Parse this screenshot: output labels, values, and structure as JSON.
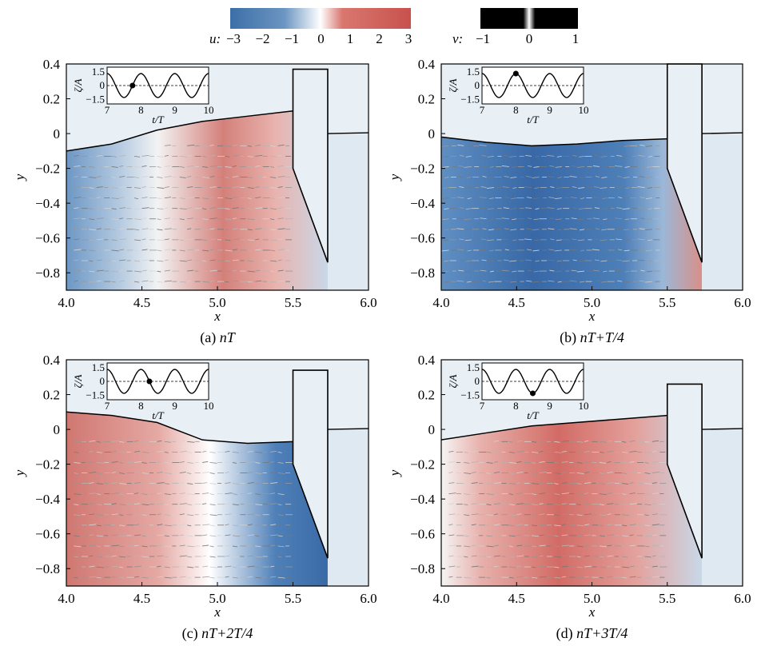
{
  "colorbars": {
    "u": {
      "label": "u:",
      "ticks": [
        "−3",
        "−2",
        "−1",
        "0",
        "1",
        "2",
        "3"
      ],
      "range": [
        -3,
        3
      ],
      "colors": [
        "#3c6fa8",
        "#ffffff",
        "#c8514d"
      ]
    },
    "v": {
      "label": "v:",
      "ticks": [
        "−1",
        "0",
        "1"
      ],
      "range": [
        -1,
        1
      ],
      "colors": [
        "#000000",
        "#ffffff",
        "#000000"
      ]
    }
  },
  "chart_data": [
    {
      "type": "heatmap",
      "panel": "a",
      "caption_prefix": "(a) ",
      "caption_math": "nT",
      "caption_suffix": "",
      "xlabel": "x",
      "ylabel": "y",
      "xlim": [
        4.0,
        6.0
      ],
      "ylim": [
        -0.9,
        0.4
      ],
      "x_ticks": [
        "4.0",
        "4.5",
        "5.0",
        "5.5",
        "6.0"
      ],
      "y_ticks": [
        "0.4",
        "0.2",
        "0",
        "−0.2",
        "−0.4",
        "−0.6",
        "−0.8"
      ],
      "dominant_u": "positive",
      "free_surface": {
        "x": [
          4.0,
          4.3,
          4.6,
          4.9,
          5.2,
          5.5
        ],
        "y": [
          -0.1,
          -0.06,
          0.02,
          0.07,
          0.1,
          0.13
        ]
      },
      "outside_surface_y": 0.0,
      "structure_top_y": 0.37,
      "inset": {
        "ylabel": "ζ/A",
        "xlabel": "t/T",
        "xticks": [
          "7",
          "8",
          "9",
          "10"
        ],
        "yticks": [
          "1.5",
          "0",
          "−1.5"
        ],
        "marker_t": 7.75
      }
    },
    {
      "type": "heatmap",
      "panel": "b",
      "caption_prefix": "(b) ",
      "caption_math": "nT",
      "caption_suffix": "+T/4",
      "xlabel": "x",
      "ylabel": "y",
      "xlim": [
        4.0,
        6.0
      ],
      "ylim": [
        -0.9,
        0.4
      ],
      "x_ticks": [
        "4.0",
        "4.5",
        "5.0",
        "5.5",
        "6.0"
      ],
      "y_ticks": [
        "0.4",
        "0.2",
        "0",
        "−0.2",
        "−0.4",
        "−0.6",
        "−0.8"
      ],
      "dominant_u": "negative",
      "free_surface": {
        "x": [
          4.0,
          4.3,
          4.6,
          4.9,
          5.2,
          5.5
        ],
        "y": [
          -0.02,
          -0.05,
          -0.07,
          -0.06,
          -0.04,
          -0.03
        ]
      },
      "outside_surface_y": 0.0,
      "structure_top_y": 0.4,
      "inset": {
        "ylabel": "ζ/A",
        "xlabel": "t/T",
        "xticks": [
          "7",
          "8",
          "9",
          "10"
        ],
        "yticks": [
          "1.5",
          "0",
          "−1.5"
        ],
        "marker_t": 8.0
      }
    },
    {
      "type": "heatmap",
      "panel": "c",
      "caption_prefix": "(c) ",
      "caption_math": "nT",
      "caption_suffix": "+2T/4",
      "xlabel": "x",
      "ylabel": "y",
      "xlim": [
        4.0,
        6.0
      ],
      "ylim": [
        -0.9,
        0.4
      ],
      "x_ticks": [
        "4.0",
        "4.5",
        "5.0",
        "5.5",
        "6.0"
      ],
      "y_ticks": [
        "0.4",
        "0.2",
        "0",
        "−0.2",
        "−0.4",
        "−0.6",
        "−0.8"
      ],
      "dominant_u": "positive_left",
      "free_surface": {
        "x": [
          4.0,
          4.3,
          4.6,
          4.9,
          5.2,
          5.5
        ],
        "y": [
          0.1,
          0.08,
          0.04,
          -0.06,
          -0.08,
          -0.07
        ]
      },
      "outside_surface_y": 0.0,
      "structure_top_y": 0.34,
      "inset": {
        "ylabel": "ζ/A",
        "xlabel": "t/T",
        "xticks": [
          "7",
          "8",
          "9",
          "10"
        ],
        "yticks": [
          "1.5",
          "0",
          "−1.5"
        ],
        "marker_t": 8.25
      }
    },
    {
      "type": "heatmap",
      "panel": "d",
      "caption_prefix": "(d) ",
      "caption_math": "nT",
      "caption_suffix": "+3T/4",
      "xlabel": "x",
      "ylabel": "y",
      "xlim": [
        4.0,
        6.0
      ],
      "ylim": [
        -0.9,
        0.4
      ],
      "x_ticks": [
        "4.0",
        "4.5",
        "5.0",
        "5.5",
        "6.0"
      ],
      "y_ticks": [
        "0.4",
        "0.2",
        "0",
        "−0.2",
        "−0.4",
        "−0.6",
        "−0.8"
      ],
      "dominant_u": "positive",
      "free_surface": {
        "x": [
          4.0,
          4.3,
          4.6,
          4.9,
          5.2,
          5.5
        ],
        "y": [
          -0.06,
          -0.02,
          0.02,
          0.04,
          0.06,
          0.08
        ]
      },
      "outside_surface_y": 0.0,
      "structure_top_y": 0.26,
      "inset": {
        "ylabel": "ζ/A",
        "xlabel": "t/T",
        "xticks": [
          "7",
          "8",
          "9",
          "10"
        ],
        "yticks": [
          "1.5",
          "0",
          "−1.5"
        ],
        "marker_t": 8.5
      }
    }
  ]
}
